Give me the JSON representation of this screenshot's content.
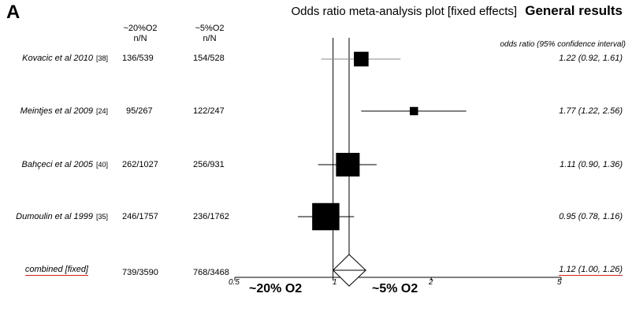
{
  "panel_label": "A",
  "chart_title": "Odds ratio meta-analysis plot [fixed effects]",
  "chart_subtitle": "General results",
  "col_headers": {
    "group1": "~20%O2",
    "group2": "~5%O2",
    "nN": "n/N",
    "ci": "odds ratio (95% confidence interval)"
  },
  "x_axis_labels": {
    "left": "~20% O2",
    "right": "~5% O2"
  },
  "colors": {
    "ink": "#000000",
    "underline": "#d32020"
  },
  "chart_data": {
    "type": "forest",
    "scale": "log",
    "xlim": [
      0.5,
      5
    ],
    "reference_line": 1,
    "ticks": [
      {
        "value": 0.5,
        "label": "0.5"
      },
      {
        "value": 1,
        "label": "1"
      },
      {
        "value": 2,
        "label": "2"
      },
      {
        "value": 5,
        "label": "5"
      }
    ],
    "studies": [
      {
        "name": "Kovacic et al 2010",
        "ref": "[38]",
        "group1": "136/539",
        "group2": "154/528",
        "or": 1.22,
        "lo": 0.92,
        "hi": 1.61,
        "ci_text": "1.22 (0.92, 1.61)",
        "weight": 0.62
      },
      {
        "name": "Meintjes et al 2009",
        "ref": "[24]",
        "group1": "95/267",
        "group2": "122/247",
        "or": 1.77,
        "lo": 1.22,
        "hi": 2.56,
        "ci_text": "1.77 (1.22, 2.56)",
        "weight": 0.35
      },
      {
        "name": "Bahçeci et al 2005",
        "ref": "[40]",
        "group1": "262/1027",
        "group2": "256/931",
        "or": 1.11,
        "lo": 0.9,
        "hi": 1.36,
        "ci_text": "1.11 (0.90, 1.36)",
        "weight": 1.0
      },
      {
        "name": "Dumoulin et al 1999",
        "ref": "[35]",
        "group1": "246/1757",
        "group2": "236/1762",
        "or": 0.95,
        "lo": 0.78,
        "hi": 1.16,
        "ci_text": "0.95 (0.78, 1.16)",
        "weight": 1.15
      }
    ],
    "combined": {
      "name": "combined [fixed]",
      "group1": "739/3590",
      "group2": "768/3468",
      "or": 1.12,
      "lo": 1.0,
      "hi": 1.26,
      "ci_text": "1.12 (1.00, 1.26)"
    }
  }
}
